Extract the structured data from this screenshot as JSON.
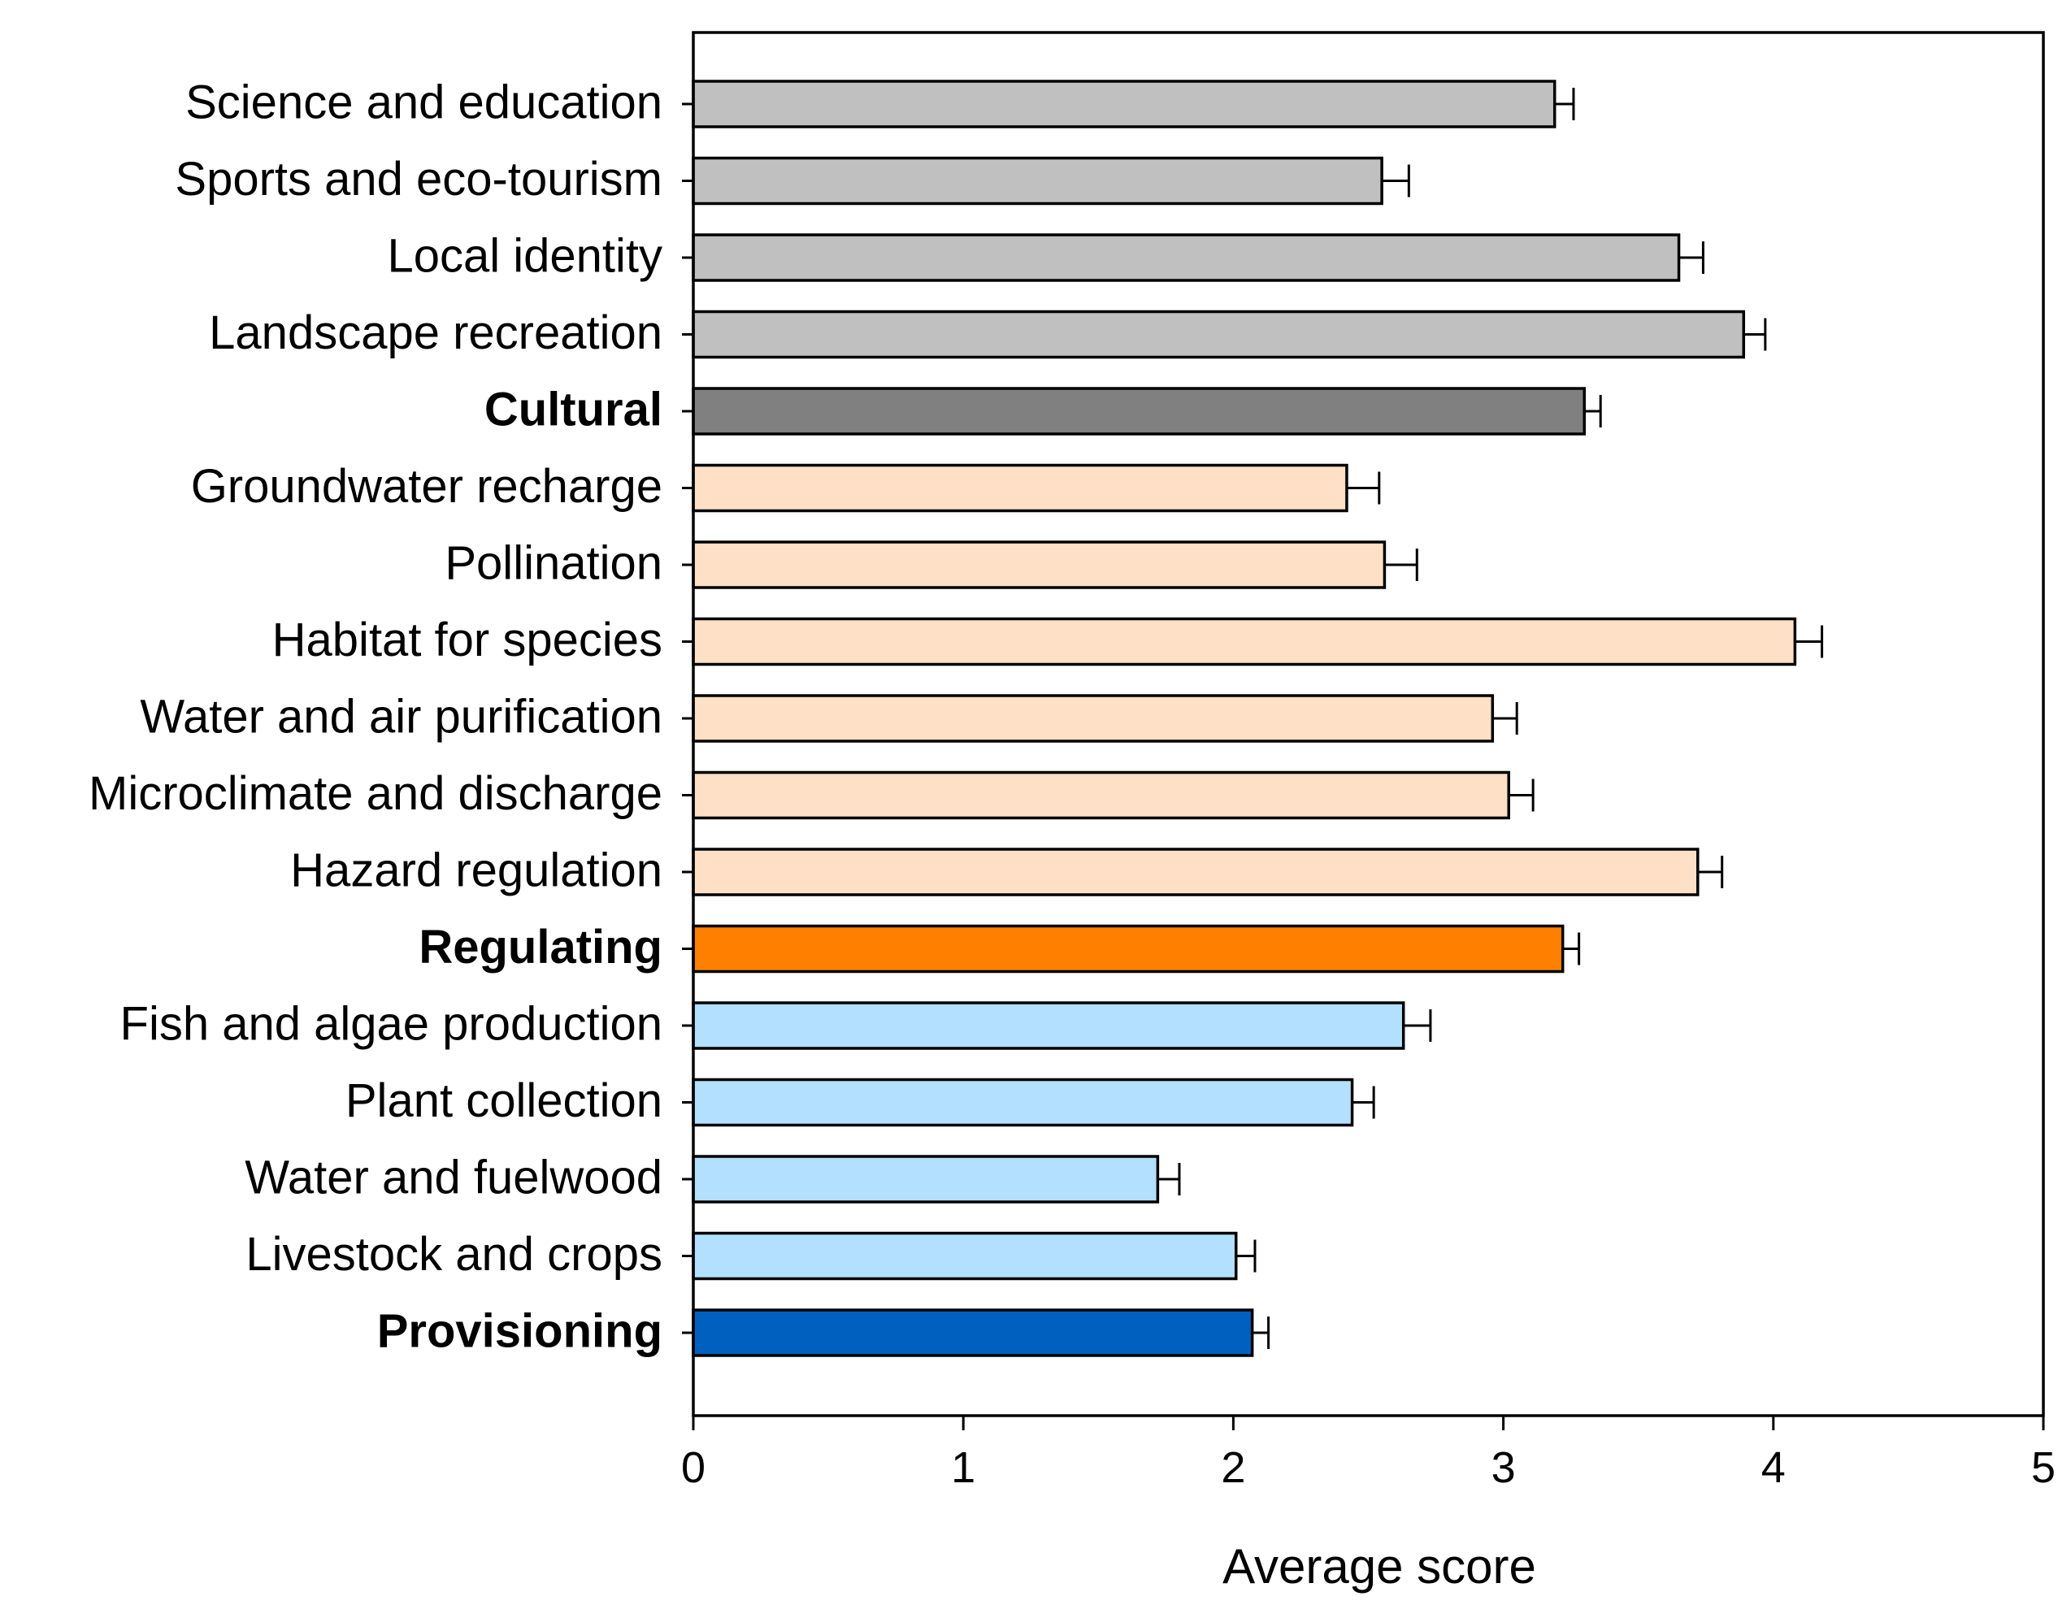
{
  "chart_data": {
    "type": "bar",
    "orientation": "horizontal",
    "title": "",
    "xlabel": "Average score",
    "ylabel": "",
    "xlim": [
      0,
      5
    ],
    "xticks": [
      "0",
      "1",
      "2",
      "3",
      "4",
      "5"
    ],
    "grid": false,
    "legend": "none",
    "categories": [
      "Science and education",
      "Sports and eco-tourism",
      "Local identity",
      "Landscape recreation",
      "Cultural",
      "Groundwater recharge",
      "Pollination",
      "Habitat for species",
      "Water and air purification",
      "Microclimate and discharge",
      "Hazard regulation",
      "Regulating",
      "Fish and algae production",
      "Plant collection",
      "Water and fuelwood",
      "Livestock and crops",
      "Provisioning"
    ],
    "values": [
      3.19,
      2.55,
      3.65,
      3.89,
      3.3,
      2.42,
      2.56,
      4.08,
      2.96,
      3.02,
      3.72,
      3.22,
      2.63,
      2.44,
      1.72,
      2.01,
      2.07
    ],
    "errors": [
      0.07,
      0.1,
      0.09,
      0.08,
      0.06,
      0.12,
      0.12,
      0.1,
      0.09,
      0.09,
      0.09,
      0.06,
      0.1,
      0.08,
      0.08,
      0.07,
      0.06
    ],
    "bold": [
      false,
      false,
      false,
      false,
      true,
      false,
      false,
      false,
      false,
      false,
      false,
      true,
      false,
      false,
      false,
      false,
      true
    ],
    "colors": [
      "#c0c0c0",
      "#c0c0c0",
      "#c0c0c0",
      "#c0c0c0",
      "#808080",
      "#fde0c5",
      "#fde0c5",
      "#fde0c5",
      "#fde0c5",
      "#fde0c5",
      "#fde0c5",
      "#ff8000",
      "#b3e0ff",
      "#b3e0ff",
      "#b3e0ff",
      "#b3e0ff",
      "#0060c0"
    ]
  }
}
